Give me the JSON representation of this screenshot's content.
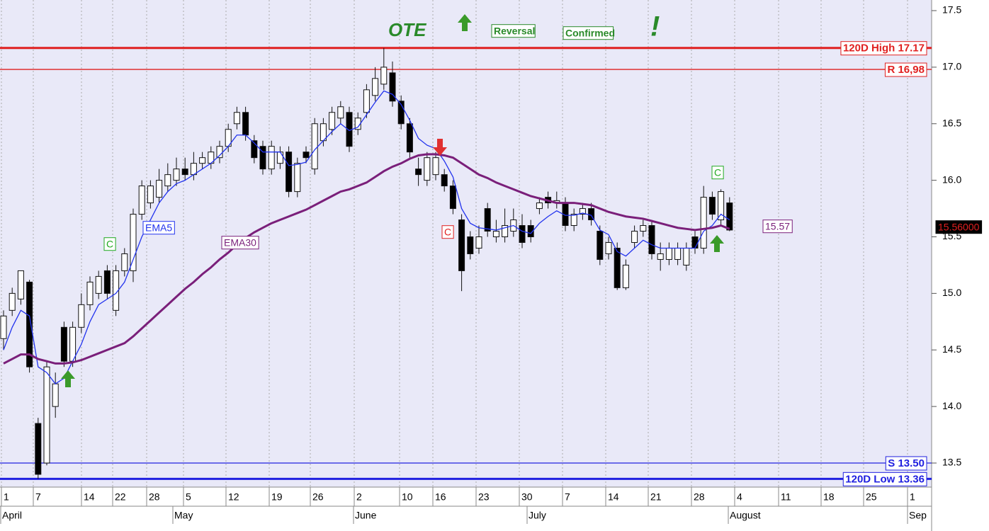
{
  "chart_data": {
    "type": "candlestick",
    "open": [
      14.6,
      14.85,
      14.95,
      15.1,
      13.85,
      13.5,
      14.0,
      14.7,
      14.4,
      14.7,
      14.9,
      15.0,
      15.2,
      14.85,
      15.2,
      15.2,
      15.7,
      15.8,
      15.85,
      15.95,
      16.0,
      16.1,
      16.05,
      16.15,
      16.15,
      16.2,
      16.3,
      16.5,
      16.6,
      16.35,
      16.3,
      16.1,
      16.15,
      16.25,
      15.9,
      16.25,
      16.1,
      16.35,
      16.45,
      16.55,
      16.6,
      16.45,
      16.6,
      16.75,
      16.85,
      16.95,
      16.7,
      16.5,
      16.1,
      16.0,
      16.05,
      16.05,
      15.95,
      15.65,
      15.5,
      15.4,
      15.75,
      15.5,
      15.5,
      15.55,
      15.6,
      15.6,
      15.75,
      15.85,
      15.8,
      15.8,
      15.6,
      15.7,
      15.75,
      15.55,
      15.35,
      15.4,
      15.05,
      15.45,
      15.55,
      15.6,
      15.3,
      15.3,
      15.3,
      15.25,
      15.5,
      15.4,
      15.85,
      15.65,
      15.8
    ],
    "high": [
      14.85,
      15.05,
      15.2,
      15.12,
      13.9,
      14.4,
      14.3,
      14.75,
      14.75,
      15.0,
      15.15,
      15.2,
      15.25,
      15.25,
      15.4,
      15.75,
      16.0,
      16.0,
      16.1,
      16.15,
      16.2,
      16.2,
      16.25,
      16.25,
      16.3,
      16.35,
      16.5,
      16.65,
      16.65,
      16.4,
      16.35,
      16.35,
      16.3,
      16.3,
      16.2,
      16.3,
      16.55,
      16.55,
      16.65,
      16.7,
      16.65,
      16.6,
      16.85,
      17.0,
      17.17,
      17.05,
      16.75,
      16.55,
      16.2,
      16.25,
      16.25,
      16.1,
      16.0,
      15.7,
      15.55,
      15.6,
      15.8,
      15.65,
      15.75,
      15.75,
      15.7,
      15.65,
      15.85,
      15.9,
      15.9,
      15.85,
      15.75,
      15.8,
      15.8,
      15.6,
      15.5,
      15.45,
      15.3,
      15.6,
      15.65,
      15.65,
      15.45,
      15.45,
      15.45,
      15.45,
      15.55,
      15.95,
      15.9,
      15.92,
      15.85
    ],
    "low": [
      14.5,
      14.8,
      14.9,
      14.3,
      13.36,
      13.48,
      13.9,
      14.35,
      14.35,
      14.65,
      14.85,
      14.95,
      14.95,
      14.8,
      15.15,
      15.1,
      15.65,
      15.75,
      15.8,
      15.9,
      15.95,
      16.0,
      16.0,
      16.1,
      16.1,
      16.15,
      16.25,
      16.45,
      16.35,
      16.15,
      16.05,
      16.05,
      16.1,
      15.85,
      15.85,
      16.15,
      16.05,
      16.3,
      16.4,
      16.5,
      16.25,
      16.4,
      16.55,
      16.7,
      16.8,
      16.65,
      16.45,
      16.2,
      15.95,
      15.95,
      16.0,
      15.9,
      15.7,
      15.02,
      15.3,
      15.35,
      15.5,
      15.45,
      15.45,
      15.5,
      15.4,
      15.45,
      15.7,
      15.75,
      15.75,
      15.55,
      15.55,
      15.65,
      15.6,
      15.25,
      15.3,
      15.03,
      15.03,
      15.4,
      15.5,
      15.3,
      15.2,
      15.25,
      15.25,
      15.2,
      15.35,
      15.35,
      15.65,
      15.6,
      15.55
    ],
    "close": [
      14.8,
      15.0,
      15.2,
      14.35,
      13.4,
      14.35,
      14.2,
      14.4,
      14.7,
      14.9,
      15.1,
      15.15,
      15.0,
      15.2,
      15.35,
      15.7,
      15.95,
      15.95,
      16.0,
      16.05,
      16.1,
      16.05,
      16.15,
      16.2,
      16.25,
      16.3,
      16.45,
      16.6,
      16.4,
      16.2,
      16.1,
      16.3,
      16.25,
      15.9,
      16.15,
      16.2,
      16.5,
      16.5,
      16.6,
      16.65,
      16.3,
      16.55,
      16.8,
      16.9,
      17.0,
      16.7,
      16.5,
      16.25,
      16.05,
      16.2,
      16.2,
      15.95,
      15.75,
      15.2,
      15.35,
      15.5,
      15.55,
      15.55,
      15.6,
      15.65,
      15.45,
      15.5,
      15.8,
      15.8,
      15.82,
      15.6,
      15.7,
      15.75,
      15.65,
      15.3,
      15.45,
      15.05,
      15.25,
      15.55,
      15.6,
      15.35,
      15.35,
      15.4,
      15.4,
      15.4,
      15.4,
      15.85,
      15.7,
      15.9,
      15.56
    ],
    "series": [
      {
        "name": "EMA5",
        "color": "#2233ee",
        "values": [
          14.5,
          14.7,
          14.85,
          14.8,
          14.35,
          14.3,
          14.2,
          14.25,
          14.4,
          14.55,
          14.75,
          14.9,
          14.95,
          15.0,
          15.1,
          15.3,
          15.5,
          15.65,
          15.8,
          15.9,
          15.97,
          16.0,
          16.05,
          16.1,
          16.15,
          16.22,
          16.3,
          16.4,
          16.4,
          16.33,
          16.25,
          16.25,
          16.25,
          16.13,
          16.14,
          16.16,
          16.27,
          16.35,
          16.43,
          16.5,
          16.44,
          16.47,
          16.58,
          16.69,
          16.79,
          16.76,
          16.67,
          16.53,
          16.37,
          16.31,
          16.28,
          16.17,
          16.03,
          15.75,
          15.62,
          15.58,
          15.57,
          15.56,
          15.58,
          15.6,
          15.55,
          15.53,
          15.62,
          15.68,
          15.73,
          15.69,
          15.69,
          15.71,
          15.69,
          15.56,
          15.52,
          15.37,
          15.33,
          15.4,
          15.47,
          15.43,
          15.4,
          15.4,
          15.4,
          15.4,
          15.4,
          15.55,
          15.6,
          15.7,
          15.65
        ]
      },
      {
        "name": "EMA30",
        "color": "#7a1f7a",
        "values": [
          14.38,
          14.42,
          14.46,
          14.46,
          14.42,
          14.4,
          14.38,
          14.38,
          14.39,
          14.41,
          14.44,
          14.47,
          14.5,
          14.53,
          14.56,
          14.62,
          14.69,
          14.76,
          14.83,
          14.9,
          14.97,
          15.04,
          15.1,
          15.17,
          15.23,
          15.3,
          15.36,
          15.43,
          15.49,
          15.54,
          15.58,
          15.62,
          15.65,
          15.68,
          15.71,
          15.74,
          15.78,
          15.82,
          15.86,
          15.9,
          15.92,
          15.95,
          15.98,
          16.03,
          16.08,
          16.12,
          16.15,
          16.19,
          16.22,
          16.23,
          16.23,
          16.22,
          16.2,
          16.15,
          16.1,
          16.05,
          16.02,
          15.98,
          15.95,
          15.92,
          15.89,
          15.86,
          15.84,
          15.82,
          15.8,
          15.8,
          15.8,
          15.79,
          15.78,
          15.75,
          15.72,
          15.7,
          15.68,
          15.67,
          15.66,
          15.64,
          15.62,
          15.6,
          15.58,
          15.57,
          15.56,
          15.57,
          15.58,
          15.6,
          15.57
        ]
      }
    ],
    "ema30_label": "15.57",
    "last_price_label": "15.56000",
    "levels": [
      {
        "label": "120D High 17.17",
        "value": 17.17,
        "color": "#e02020"
      },
      {
        "label": "R 16,98",
        "value": 16.98,
        "color": "#e02020"
      },
      {
        "label": "S 13.50",
        "value": 13.5,
        "color": "#2020e0"
      },
      {
        "label": "120D Low 13.36",
        "value": 13.36,
        "color": "#2020e0"
      }
    ],
    "markers": [
      "C",
      "C",
      "C"
    ],
    "annotations": [
      "OTE",
      "Reversal",
      "Confirmed",
      "!"
    ],
    "ylim": [
      13.3,
      17.6
    ],
    "yticks": [
      13.5,
      {
        "value": 14,
        "label": "14.0"
      },
      14.5,
      {
        "value": 15,
        "label": "15.0"
      },
      15.5,
      {
        "value": 16,
        "label": "16.0"
      },
      16.5,
      {
        "value": 17,
        "label": "17.0"
      },
      17.5
    ],
    "day_labels": [
      "1",
      "7",
      "14",
      "22",
      "28",
      "5",
      "12",
      "19",
      "26",
      "2",
      "10",
      "16",
      "23",
      "30",
      "7",
      "14",
      "21",
      "28",
      "4",
      "11",
      "18",
      "25",
      "1"
    ],
    "month_labels": [
      "April",
      "May",
      "June",
      "July",
      "August",
      "Sep"
    ]
  }
}
